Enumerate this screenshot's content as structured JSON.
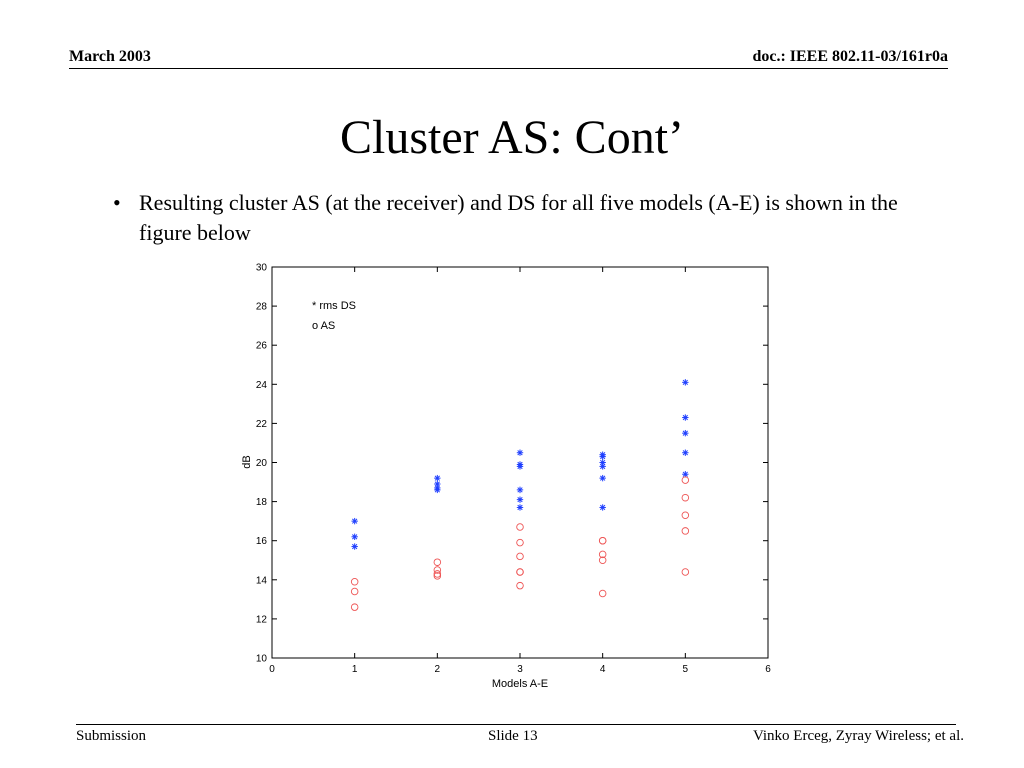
{
  "header": {
    "date": "March 2003",
    "doc": "doc.: IEEE 802.11-03/161r0a"
  },
  "slide": {
    "title": "Cluster AS: Cont’",
    "bullet_marker": "•",
    "bullet": "Resulting cluster AS (at the receiver) and DS for all five models (A-E) is shown in the figure below"
  },
  "footer": {
    "left": "Submission",
    "center": "Slide 13",
    "right": "Vinko Erceg, Zyray Wireless; et al."
  },
  "chart_data": {
    "type": "scatter",
    "title": "",
    "xlabel": "Models A-E",
    "ylabel": "dB",
    "xlim": [
      0,
      6
    ],
    "ylim": [
      10,
      30
    ],
    "xticks": [
      0,
      1,
      2,
      3,
      4,
      5,
      6
    ],
    "yticks": [
      10,
      12,
      14,
      16,
      18,
      20,
      22,
      24,
      26,
      28,
      30
    ],
    "grid": false,
    "legend_position": "top-left",
    "legend": [
      {
        "marker": "*",
        "label": "rms DS"
      },
      {
        "marker": "o",
        "label": "AS"
      }
    ],
    "series": [
      {
        "name": "rms DS",
        "marker": "*",
        "color": "#1f3fff",
        "points": [
          [
            1,
            17.0
          ],
          [
            1,
            16.2
          ],
          [
            1,
            15.7
          ],
          [
            2,
            19.2
          ],
          [
            2,
            18.9
          ],
          [
            2,
            18.7
          ],
          [
            2,
            18.6
          ],
          [
            3,
            20.5
          ],
          [
            3,
            19.9
          ],
          [
            3,
            19.8
          ],
          [
            3,
            18.6
          ],
          [
            3,
            18.1
          ],
          [
            3,
            17.7
          ],
          [
            4,
            20.4
          ],
          [
            4,
            20.3
          ],
          [
            4,
            20.0
          ],
          [
            4,
            19.8
          ],
          [
            4,
            19.2
          ],
          [
            4,
            17.7
          ],
          [
            5,
            24.1
          ],
          [
            5,
            22.3
          ],
          [
            5,
            21.5
          ],
          [
            5,
            20.5
          ],
          [
            5,
            19.4
          ]
        ]
      },
      {
        "name": "AS",
        "marker": "o",
        "color": "#ee5555",
        "points": [
          [
            1,
            13.9
          ],
          [
            1,
            13.4
          ],
          [
            1,
            12.6
          ],
          [
            2,
            14.9
          ],
          [
            2,
            14.5
          ],
          [
            2,
            14.3
          ],
          [
            2,
            14.2
          ],
          [
            3,
            16.7
          ],
          [
            3,
            15.9
          ],
          [
            3,
            15.2
          ],
          [
            3,
            14.4
          ],
          [
            3,
            14.4
          ],
          [
            3,
            13.7
          ],
          [
            4,
            16.0
          ],
          [
            4,
            16.0
          ],
          [
            4,
            15.3
          ],
          [
            4,
            15.0
          ],
          [
            4,
            13.3
          ],
          [
            5,
            19.1
          ],
          [
            5,
            18.2
          ],
          [
            5,
            17.3
          ],
          [
            5,
            16.5
          ],
          [
            5,
            14.4
          ]
        ]
      }
    ]
  }
}
